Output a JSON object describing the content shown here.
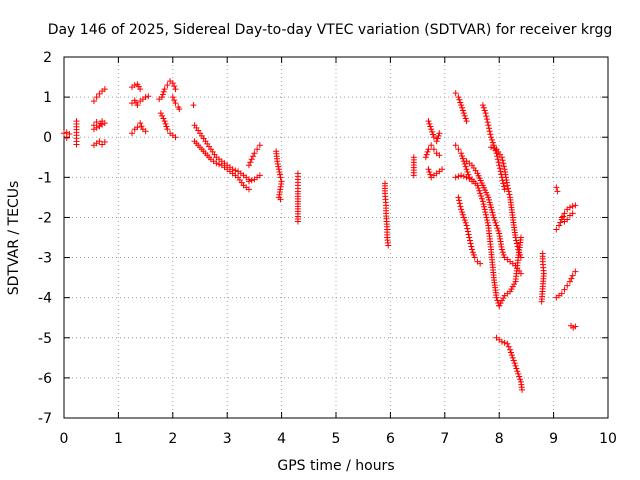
{
  "chart_data": {
    "type": "scatter",
    "title": "Day 146 of 2025, Sidereal Day-to-day VTEC variation (SDTVAR) for receiver krgg",
    "xlabel": "GPS time / hours",
    "ylabel": "SDTVAR / TECUs",
    "xlim": [
      0,
      10
    ],
    "ylim": [
      -7,
      2
    ],
    "xticks": [
      "0",
      "1",
      "2",
      "3",
      "4",
      "5",
      "6",
      "7",
      "8",
      "9",
      "10"
    ],
    "yticks": [
      "-7",
      "-6",
      "-5",
      "-4",
      "-3",
      "-2",
      "-1",
      "0",
      "1",
      "2"
    ],
    "grid": true,
    "marker": "+",
    "color": "#ff0000",
    "segments": [
      [
        [
          0.0,
          0.1
        ],
        [
          0.05,
          0.12
        ],
        [
          0.1,
          0.08
        ],
        [
          0.05,
          -0.02
        ]
      ],
      [
        [
          0.23,
          0.4
        ],
        [
          0.23,
          0.05
        ],
        [
          0.23,
          -0.18
        ]
      ],
      [
        [
          0.55,
          0.9
        ],
        [
          0.6,
          1.0
        ],
        [
          0.65,
          1.08
        ],
        [
          0.7,
          1.15
        ],
        [
          0.75,
          1.2
        ]
      ],
      [
        [
          0.55,
          0.3
        ],
        [
          0.6,
          0.38
        ],
        [
          0.65,
          0.28
        ],
        [
          0.7,
          0.4
        ],
        [
          0.75,
          0.35
        ],
        [
          0.55,
          0.2
        ]
      ],
      [
        [
          0.55,
          -0.2
        ],
        [
          0.6,
          -0.15
        ],
        [
          0.65,
          -0.1
        ],
        [
          0.7,
          -0.18
        ],
        [
          0.75,
          -0.12
        ]
      ],
      [
        [
          1.25,
          1.25
        ],
        [
          1.3,
          1.3
        ],
        [
          1.35,
          1.32
        ],
        [
          1.4,
          1.2
        ]
      ],
      [
        [
          1.25,
          0.85
        ],
        [
          1.3,
          0.92
        ],
        [
          1.35,
          0.8
        ],
        [
          1.4,
          0.9
        ],
        [
          1.45,
          0.95
        ],
        [
          1.5,
          1.0
        ],
        [
          1.55,
          1.02
        ]
      ],
      [
        [
          1.25,
          0.1
        ],
        [
          1.3,
          0.2
        ],
        [
          1.35,
          0.25
        ],
        [
          1.4,
          0.35
        ],
        [
          1.45,
          0.2
        ],
        [
          1.5,
          0.15
        ]
      ],
      [
        [
          1.78,
          0.6
        ],
        [
          1.85,
          0.4
        ],
        [
          1.9,
          0.2
        ],
        [
          1.95,
          0.1
        ],
        [
          2.0,
          0.05
        ],
        [
          2.05,
          0.0
        ]
      ],
      [
        [
          1.75,
          0.95
        ],
        [
          1.8,
          1.0
        ],
        [
          1.85,
          1.2
        ],
        [
          1.9,
          1.3
        ],
        [
          1.95,
          1.4
        ],
        [
          2.0,
          1.35
        ],
        [
          2.05,
          1.2
        ]
      ],
      [
        [
          2.0,
          1.0
        ],
        [
          2.05,
          0.85
        ],
        [
          2.1,
          0.75
        ],
        [
          2.12,
          0.7
        ]
      ],
      [
        [
          2.38,
          0.8
        ]
      ],
      [
        [
          2.4,
          0.3
        ],
        [
          2.5,
          0.1
        ],
        [
          2.6,
          -0.1
        ],
        [
          2.7,
          -0.3
        ],
        [
          2.8,
          -0.5
        ],
        [
          2.9,
          -0.6
        ],
        [
          3.0,
          -0.7
        ],
        [
          3.1,
          -0.8
        ],
        [
          3.2,
          -0.85
        ],
        [
          3.3,
          -0.95
        ],
        [
          3.4,
          -1.05
        ]
      ],
      [
        [
          2.4,
          -0.1
        ],
        [
          2.5,
          -0.25
        ],
        [
          2.6,
          -0.4
        ],
        [
          2.7,
          -0.55
        ],
        [
          2.8,
          -0.65
        ],
        [
          2.9,
          -0.7
        ],
        [
          3.0,
          -0.8
        ],
        [
          3.1,
          -0.9
        ],
        [
          3.2,
          -1.0
        ],
        [
          3.3,
          -1.2
        ],
        [
          3.4,
          -1.3
        ]
      ],
      [
        [
          3.4,
          -0.7
        ],
        [
          3.45,
          -0.55
        ],
        [
          3.5,
          -0.4
        ],
        [
          3.55,
          -0.3
        ],
        [
          3.6,
          -0.2
        ]
      ],
      [
        [
          3.4,
          -1.1
        ],
        [
          3.5,
          -1.05
        ],
        [
          3.6,
          -0.95
        ]
      ],
      [
        [
          3.9,
          -0.35
        ],
        [
          3.92,
          -0.6
        ],
        [
          3.95,
          -0.8
        ],
        [
          3.98,
          -1.0
        ],
        [
          4.0,
          -1.1
        ],
        [
          3.95,
          -1.5
        ],
        [
          3.98,
          -1.55
        ]
      ],
      [
        [
          4.3,
          -0.9
        ],
        [
          4.3,
          -1.2
        ],
        [
          4.3,
          -1.35
        ],
        [
          4.3,
          -2.1
        ]
      ],
      [
        [
          5.9,
          -1.15
        ],
        [
          5.9,
          -1.4
        ],
        [
          5.92,
          -1.7
        ],
        [
          5.92,
          -1.9
        ],
        [
          5.94,
          -2.3
        ],
        [
          5.94,
          -2.5
        ],
        [
          5.96,
          -2.7
        ]
      ],
      [
        [
          6.43,
          -0.5
        ],
        [
          6.43,
          -0.95
        ]
      ],
      [
        [
          6.65,
          -0.5
        ],
        [
          6.7,
          -0.3
        ],
        [
          6.75,
          -0.2
        ],
        [
          6.8,
          -0.3
        ],
        [
          6.85,
          -0.4
        ],
        [
          6.9,
          -0.45
        ]
      ],
      [
        [
          6.7,
          -0.8
        ],
        [
          6.75,
          -1.0
        ],
        [
          6.8,
          -0.95
        ],
        [
          6.85,
          -0.9
        ],
        [
          6.9,
          -0.85
        ],
        [
          6.95,
          -0.8
        ]
      ],
      [
        [
          6.7,
          0.4
        ],
        [
          6.75,
          0.2
        ],
        [
          6.8,
          0.0
        ],
        [
          6.85,
          -0.1
        ],
        [
          6.9,
          0.1
        ]
      ],
      [
        [
          7.2,
          1.1
        ],
        [
          7.25,
          1.0
        ],
        [
          7.3,
          0.8
        ],
        [
          7.35,
          0.6
        ],
        [
          7.4,
          0.4
        ]
      ],
      [
        [
          7.2,
          -0.2
        ],
        [
          7.25,
          -0.3
        ],
        [
          7.3,
          -0.4
        ],
        [
          7.35,
          -0.6
        ],
        [
          7.4,
          -0.8
        ],
        [
          7.45,
          -1.0
        ],
        [
          7.5,
          -1.1
        ]
      ],
      [
        [
          7.25,
          -1.5
        ],
        [
          7.3,
          -1.8
        ],
        [
          7.35,
          -2.0
        ],
        [
          7.4,
          -2.2
        ],
        [
          7.45,
          -2.5
        ],
        [
          7.5,
          -2.8
        ],
        [
          7.55,
          -3.0
        ],
        [
          7.6,
          -3.1
        ],
        [
          7.65,
          -3.15
        ]
      ],
      [
        [
          7.2,
          -1.0
        ],
        [
          7.3,
          -0.95
        ],
        [
          7.4,
          -1.0
        ],
        [
          7.5,
          -1.05
        ],
        [
          7.6,
          -1.2
        ],
        [
          7.7,
          -1.6
        ],
        [
          7.8,
          -2.2
        ],
        [
          7.85,
          -2.8
        ],
        [
          7.9,
          -3.5
        ],
        [
          7.95,
          -4.0
        ],
        [
          8.0,
          -4.2
        ]
      ],
      [
        [
          7.4,
          -0.6
        ],
        [
          7.5,
          -0.7
        ],
        [
          7.6,
          -0.9
        ],
        [
          7.7,
          -1.2
        ],
        [
          7.8,
          -1.5
        ],
        [
          7.9,
          -2.0
        ],
        [
          8.0,
          -2.4
        ],
        [
          8.05,
          -2.8
        ],
        [
          8.1,
          -3.0
        ],
        [
          8.2,
          -3.1
        ],
        [
          8.3,
          -3.2
        ],
        [
          8.4,
          -3.4
        ]
      ],
      [
        [
          7.7,
          0.8
        ],
        [
          7.75,
          0.6
        ],
        [
          7.8,
          0.3
        ],
        [
          7.85,
          0.0
        ],
        [
          7.9,
          -0.2
        ],
        [
          7.95,
          -0.4
        ],
        [
          8.0,
          -0.7
        ],
        [
          8.05,
          -1.0
        ],
        [
          8.1,
          -1.3
        ]
      ],
      [
        [
          7.85,
          -0.25
        ],
        [
          7.95,
          -0.3
        ],
        [
          8.05,
          -0.5
        ],
        [
          8.1,
          -0.8
        ],
        [
          8.15,
          -1.2
        ],
        [
          8.2,
          -1.5
        ],
        [
          8.25,
          -2.0
        ],
        [
          8.3,
          -2.5
        ],
        [
          8.35,
          -2.8
        ],
        [
          8.4,
          -3.0
        ]
      ],
      [
        [
          8.0,
          -4.2
        ],
        [
          8.1,
          -3.95
        ],
        [
          8.2,
          -3.85
        ],
        [
          8.3,
          -3.6
        ],
        [
          8.35,
          -3.0
        ],
        [
          8.4,
          -2.5
        ]
      ],
      [
        [
          7.95,
          -5.0
        ],
        [
          8.05,
          -5.1
        ],
        [
          8.15,
          -5.15
        ],
        [
          8.2,
          -5.3
        ],
        [
          8.25,
          -5.5
        ],
        [
          8.3,
          -5.7
        ],
        [
          8.35,
          -5.9
        ],
        [
          8.4,
          -6.1
        ],
        [
          8.42,
          -6.3
        ]
      ],
      [
        [
          8.8,
          -2.9
        ],
        [
          8.8,
          -3.1
        ],
        [
          8.82,
          -3.4
        ],
        [
          8.78,
          -4.1
        ]
      ],
      [
        [
          9.05,
          -1.25
        ],
        [
          9.07,
          -1.35
        ]
      ],
      [
        [
          9.05,
          -2.3
        ],
        [
          9.1,
          -2.2
        ],
        [
          9.15,
          -2.05
        ],
        [
          9.2,
          -1.9
        ],
        [
          9.25,
          -1.8
        ],
        [
          9.3,
          -1.75
        ],
        [
          9.35,
          -1.72
        ],
        [
          9.4,
          -1.7
        ]
      ],
      [
        [
          9.15,
          -2.0
        ],
        [
          9.2,
          -2.1
        ],
        [
          9.25,
          -2.05
        ],
        [
          9.3,
          -1.95
        ],
        [
          9.35,
          -1.9
        ]
      ],
      [
        [
          9.05,
          -4.0
        ],
        [
          9.1,
          -3.95
        ],
        [
          9.15,
          -3.9
        ],
        [
          9.2,
          -3.8
        ],
        [
          9.25,
          -3.7
        ],
        [
          9.3,
          -3.6
        ],
        [
          9.35,
          -3.45
        ],
        [
          9.4,
          -3.35
        ]
      ],
      [
        [
          9.32,
          -4.7
        ],
        [
          9.36,
          -4.75
        ],
        [
          9.4,
          -4.72
        ]
      ]
    ]
  }
}
